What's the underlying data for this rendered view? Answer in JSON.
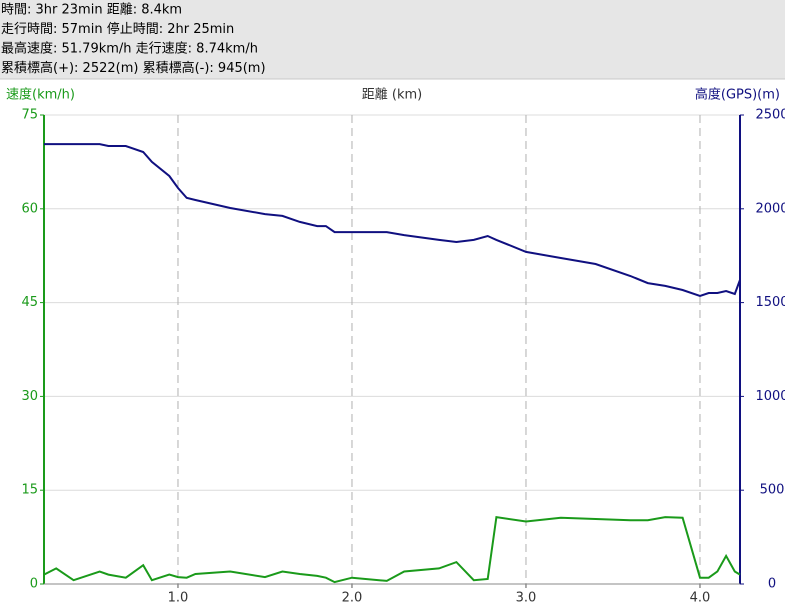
{
  "header": {
    "lines": [
      "時間: 3hr 23min 距離: 8.4km",
      "走行時間: 57min 停止時間: 2hr 25min",
      "最高速度: 51.79km/h 走行速度: 8.74km/h",
      "累積標高(+): 2522(m) 累積標高(-): 945(m)"
    ]
  },
  "chart_data": {
    "type": "line",
    "y_label": "速度(km/h)",
    "x_label": "距離 (km)",
    "y2_label": "高度(GPS)(m)",
    "x": [
      0.23,
      0.3,
      0.4,
      0.55,
      0.6,
      0.7,
      0.8,
      0.85,
      0.95,
      1.0,
      1.05,
      1.1,
      1.3,
      1.5,
      1.6,
      1.7,
      1.8,
      1.85,
      1.9,
      2.0,
      2.2,
      2.3,
      2.5,
      2.6,
      2.7,
      2.78,
      2.83,
      3.0,
      3.2,
      3.4,
      3.6,
      3.7,
      3.8,
      3.9,
      4.0,
      4.05,
      4.1,
      4.15,
      4.2,
      4.23
    ],
    "series": [
      {
        "name": "速度",
        "color": "#1a9a1a",
        "values": [
          1.5,
          2.5,
          0.6,
          2,
          1.5,
          1,
          3,
          0.6,
          1.5,
          1.1,
          1,
          1.6,
          2,
          1.1,
          2,
          1.6,
          1.3,
          1,
          0.3,
          1,
          0.5,
          2,
          2.5,
          3.5,
          0.6,
          0.8,
          10.7,
          10,
          10.6,
          10.4,
          10.2,
          10.2,
          10.7,
          10.6,
          1,
          1,
          2,
          4.5,
          2,
          1.5
        ]
      },
      {
        "name": "高度",
        "color": "#101080",
        "axis": "y2",
        "values": [
          2345,
          2345,
          2345,
          2345,
          2335,
          2335,
          2303,
          2250,
          2175,
          2111,
          2058,
          2047,
          2004,
          1972,
          1962,
          1930,
          1908,
          1908,
          1876,
          1876,
          1876,
          1860,
          1834,
          1823,
          1834,
          1855,
          1834,
          1770,
          1738,
          1706,
          1642,
          1604,
          1589,
          1567,
          1535,
          1551,
          1551,
          1562,
          1546,
          1621
        ]
      }
    ],
    "xlim": [
      0.23,
      4.23
    ],
    "xticks": [
      {
        "value": 1,
        "label": "1.0"
      },
      {
        "value": 2,
        "label": "2.0"
      },
      {
        "value": 3,
        "label": "3.0"
      },
      {
        "value": 4,
        "label": "4.0"
      }
    ],
    "ylim": [
      0,
      75
    ],
    "yticks": [
      0,
      15,
      30,
      45,
      60,
      75
    ],
    "y2lim": [
      0,
      2500
    ],
    "y2ticks": [
      0,
      500,
      1000,
      1500,
      2000,
      2500
    ],
    "grid": true
  }
}
